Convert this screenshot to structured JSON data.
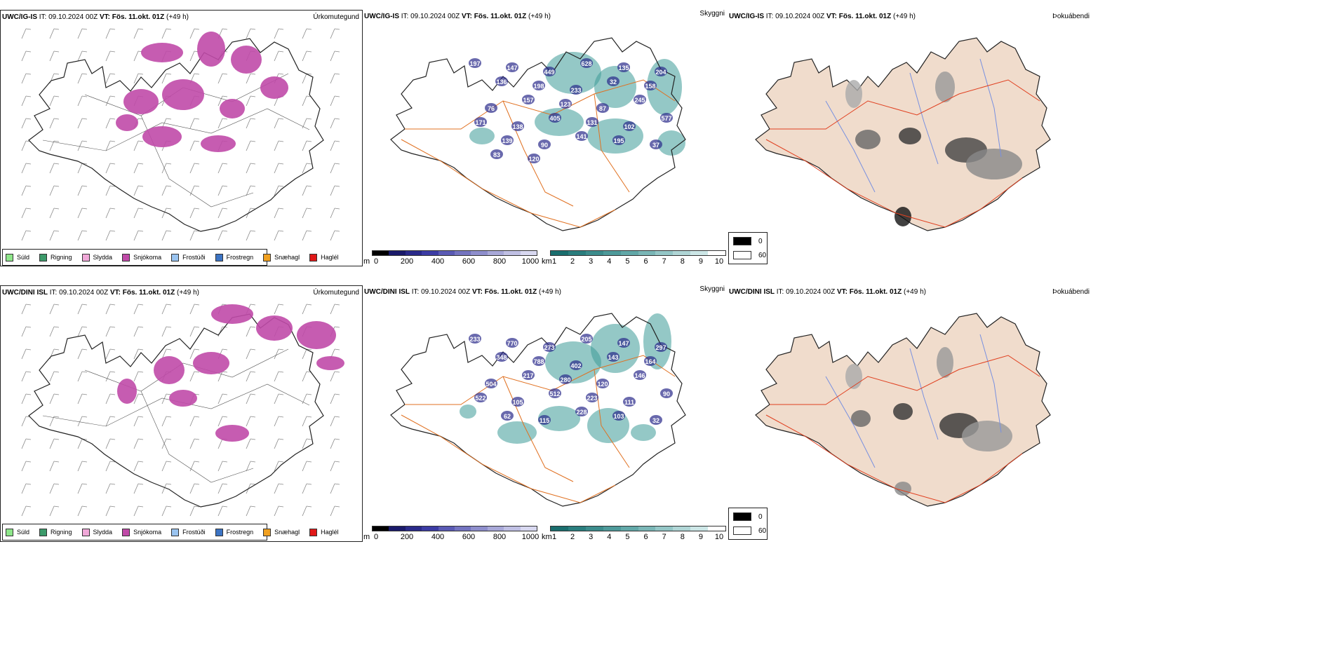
{
  "rows": [
    {
      "precip": {
        "model": "UWC/IG-IS",
        "it_label": "IT:",
        "it": "09.10.2024 00Z",
        "vt_label": "VT:",
        "vt": "Fös. 11.okt. 01Z",
        "lead": "(+49 h)",
        "title": "Úrkomutegund"
      },
      "cloud": {
        "model": "UWC/IG-IS",
        "it_label": "IT:",
        "it": "09.10.2024 00Z",
        "vt_label": "VT:",
        "vt": "Fös. 11.okt. 01Z",
        "lead": "(+49 h)",
        "title": "Skyggni"
      },
      "fog": {
        "model": "UWC/IG-IS",
        "it_label": "IT:",
        "it": "09.10.2024 00Z",
        "vt_label": "VT:",
        "vt": "Fös. 11.okt. 01Z",
        "lead": "(+49 h)",
        "title": "Þokuábendi"
      },
      "labels": [
        "197",
        "147",
        "449",
        "628",
        "135",
        "204",
        "136",
        "198",
        "233",
        "32",
        "158",
        "76",
        "157",
        "123",
        "87",
        "245",
        "171",
        "138",
        "405",
        "131",
        "102",
        "577",
        "139",
        "90",
        "141",
        "195",
        "37",
        "83",
        "120"
      ]
    },
    {
      "precip": {
        "model": "UWC/DINI ISL",
        "it_label": "IT:",
        "it": "09.10.2024 00Z",
        "vt_label": "VT:",
        "vt": "Fös. 11.okt. 01Z",
        "lead": "(+49 h)",
        "title": "Úrkomutegund"
      },
      "cloud": {
        "model": "UWC/DINI ISL",
        "it_label": "IT:",
        "it": "09.10.2024 00Z",
        "vt_label": "VT:",
        "vt": "Fös. 11.okt. 01Z",
        "lead": "(+49 h)",
        "title": "Skyggni"
      },
      "fog": {
        "model": "UWC/DINI ISL",
        "it_label": "IT:",
        "it": "09.10.2024 00Z",
        "vt_label": "VT:",
        "vt": "Fös. 11.okt. 01Z",
        "lead": "(+49 h)",
        "title": "Þokuábendi"
      },
      "labels": [
        "233",
        "770",
        "273",
        "205",
        "147",
        "297",
        "348",
        "788",
        "402",
        "143",
        "164",
        "504",
        "217",
        "280",
        "120",
        "146",
        "522",
        "105",
        "512",
        "223",
        "111",
        "90",
        "62",
        "115",
        "228",
        "103",
        "32"
      ]
    }
  ],
  "precip_legend": [
    {
      "label": "Súld",
      "color": "#8ee68a"
    },
    {
      "label": "Rigning",
      "color": "#3c9a6a"
    },
    {
      "label": "Slydda",
      "color": "#f0a8d8"
    },
    {
      "label": "Snjókoma",
      "color": "#c04aa8"
    },
    {
      "label": "Frostúði",
      "color": "#9ac4f0"
    },
    {
      "label": "Frostregn",
      "color": "#3c74c4"
    },
    {
      "label": "Snæhagl",
      "color": "#f0a020"
    },
    {
      "label": "Haglél",
      "color": "#e01818"
    }
  ],
  "cloud_base_bar": {
    "unit": "m",
    "ticks": [
      "0",
      "200",
      "400",
      "600",
      "800",
      "1000"
    ],
    "colors": [
      "#000000",
      "#1a1a6a",
      "#2a2a8a",
      "#3c3ca4",
      "#5a5ab4",
      "#7474c0",
      "#8e8ecc",
      "#a8a8d8",
      "#c0c0e4",
      "#d8d8f0"
    ]
  },
  "visibility_bar": {
    "unit": "km",
    "ticks": [
      "1",
      "2",
      "3",
      "4",
      "5",
      "6",
      "7",
      "8",
      "9",
      "10"
    ],
    "colors": [
      "#1a6e6e",
      "#2a7e7e",
      "#3c8c8c",
      "#4e9a9a",
      "#62a8a8",
      "#7ab6b6",
      "#94c6c6",
      "#b0d6d6",
      "#cce6e6",
      "#ffffff"
    ]
  },
  "fog_legend": [
    {
      "label": "0",
      "color": "#000000"
    },
    {
      "label": "60",
      "color": "#ffffff"
    }
  ],
  "colors": {
    "coast": "#222222",
    "roads": "#e07020",
    "snow": "#c04aa8",
    "teal": "#3c9a98",
    "land": "#f0dccc",
    "river": "#7890e0"
  }
}
